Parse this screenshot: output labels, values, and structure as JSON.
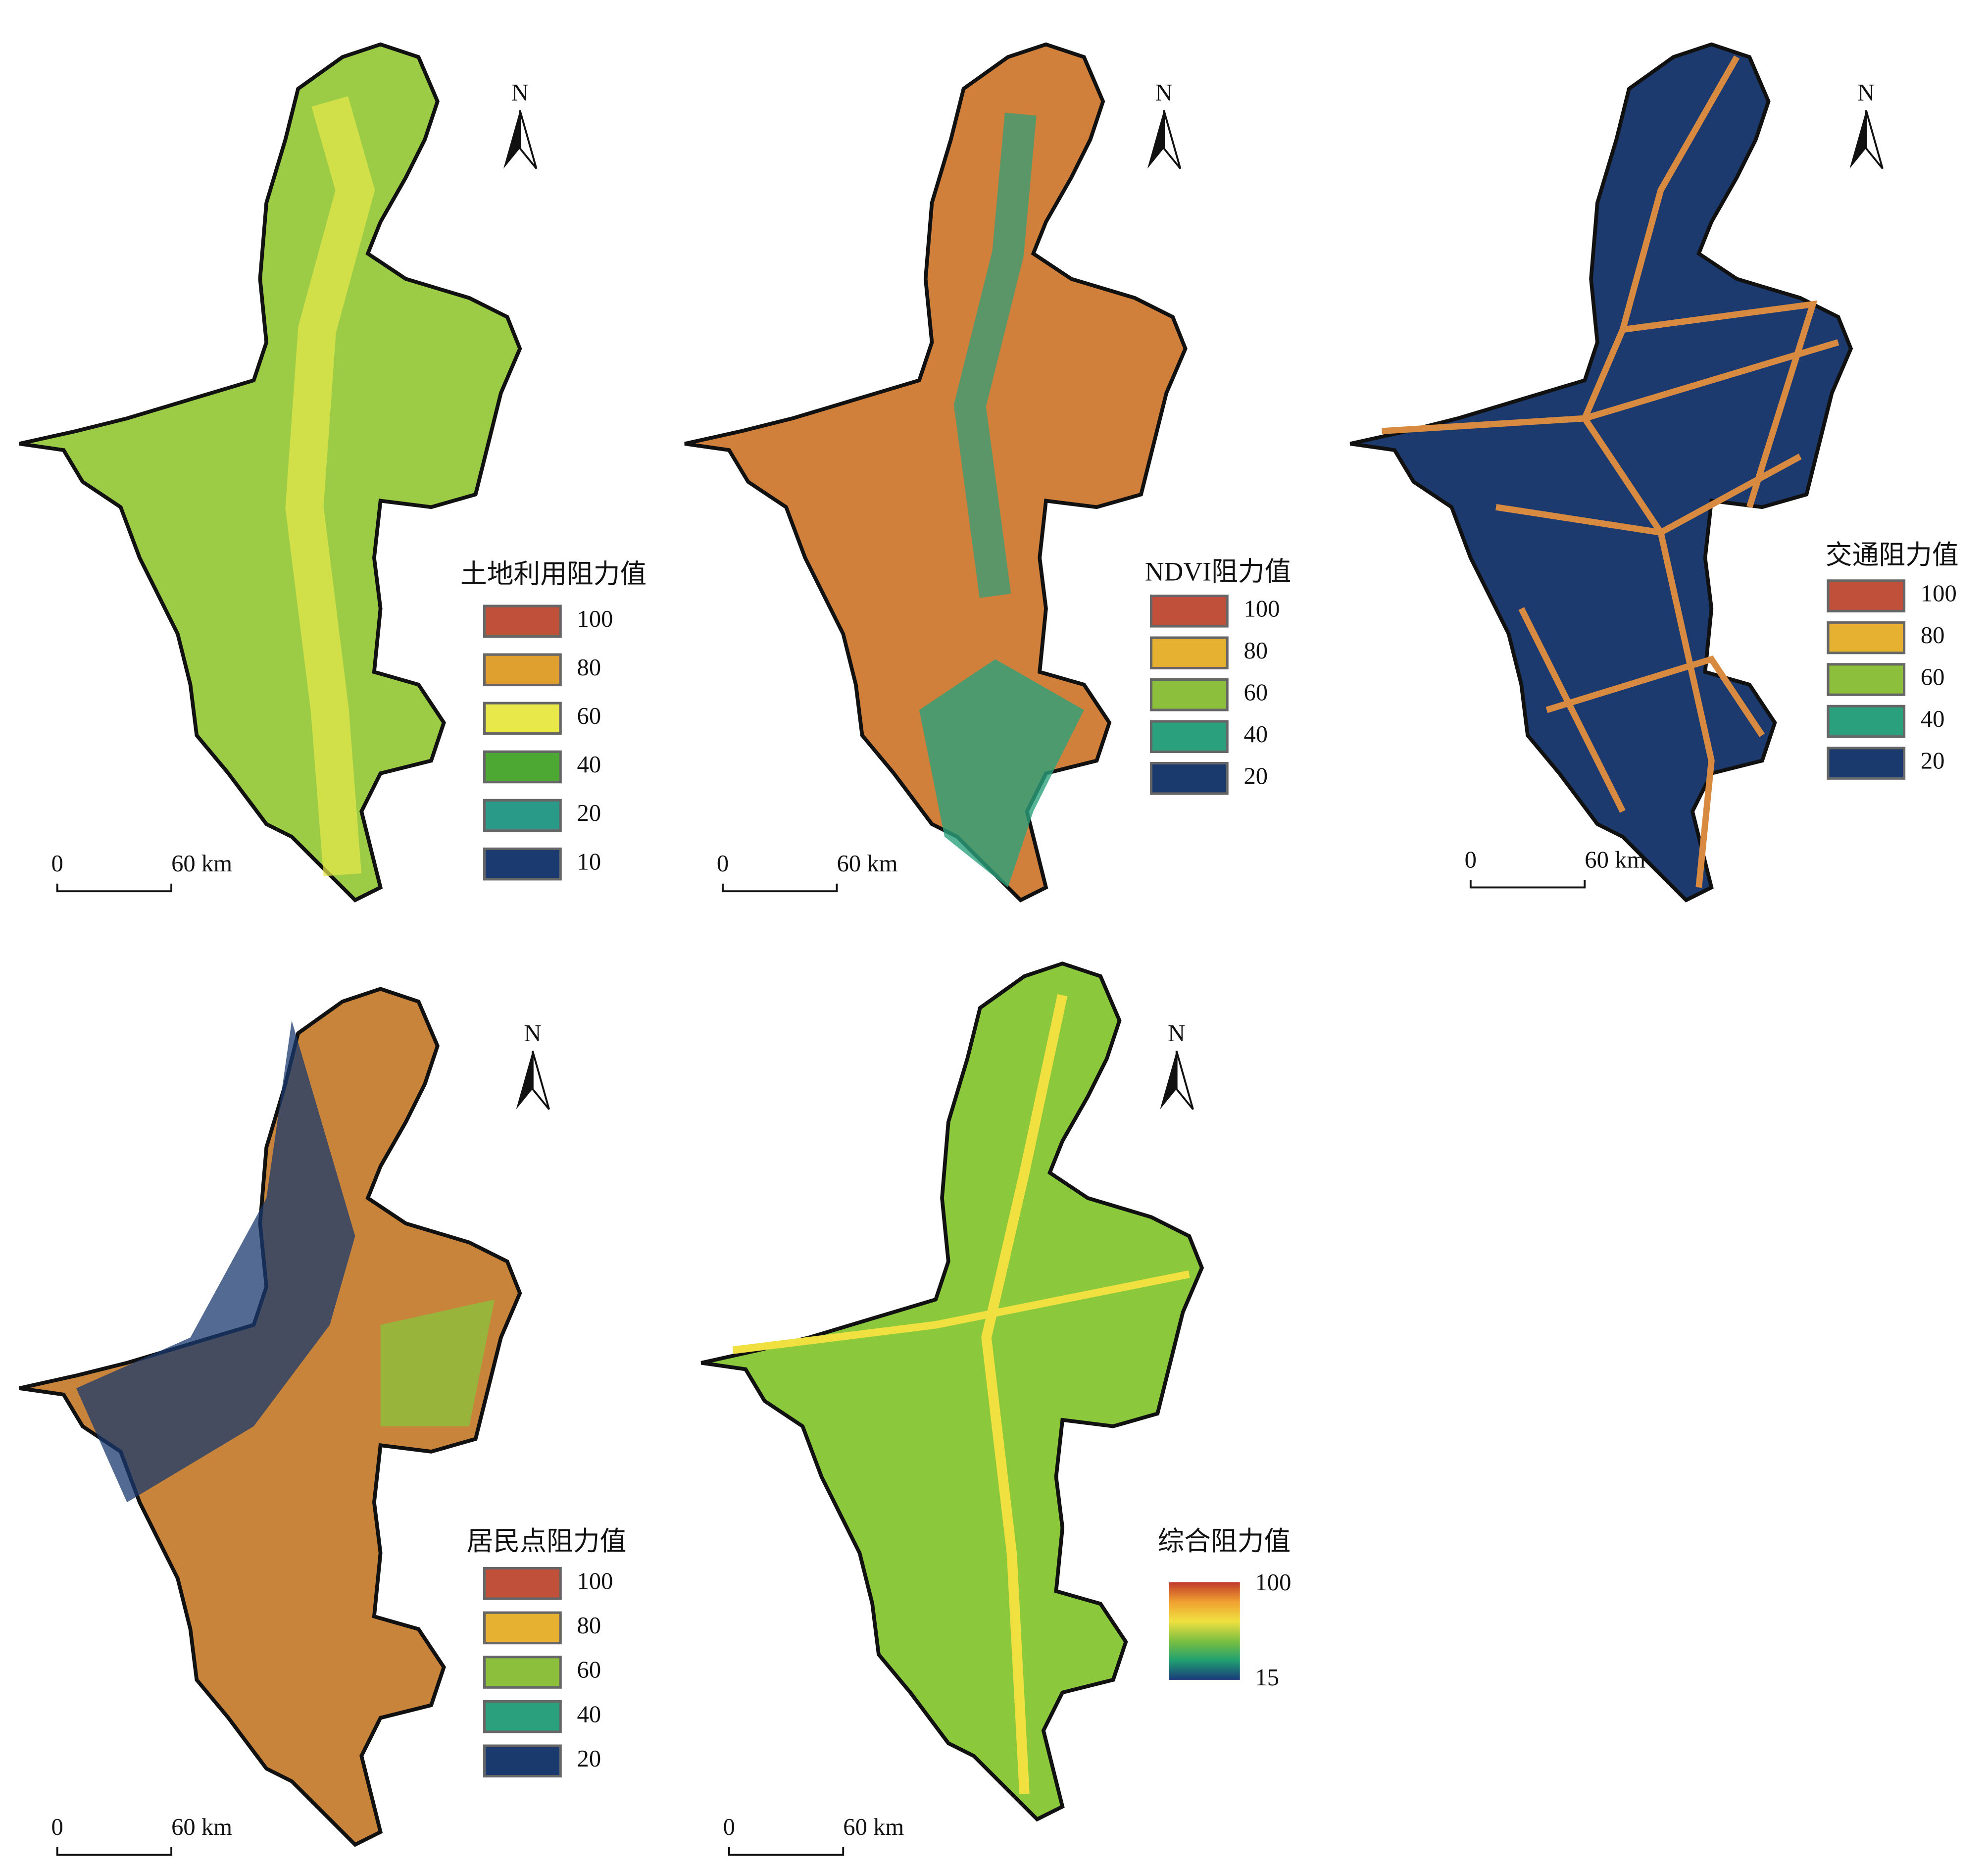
{
  "panels": [
    {
      "legend": {
        "title": "土地利用阻力值",
        "items": [
          {
            "label": 100,
            "color": "#c0503a"
          },
          {
            "label": 80,
            "color": "#e0a030"
          },
          {
            "label": 60,
            "color": "#e8e84a"
          },
          {
            "label": 40,
            "color": "#4ca832"
          },
          {
            "label": 20,
            "color": "#2a9a88"
          },
          {
            "label": 10,
            "color": "#1a3a70"
          }
        ]
      },
      "north": "N",
      "scale": {
        "start": 0,
        "end": "60 km"
      }
    },
    {
      "legend": {
        "title": "NDVI阻力值",
        "items": [
          {
            "label": 100,
            "color": "#c0503a"
          },
          {
            "label": 80,
            "color": "#e6b030"
          },
          {
            "label": 60,
            "color": "#8cc03c"
          },
          {
            "label": 40,
            "color": "#2aa07c"
          },
          {
            "label": 20,
            "color": "#1a3a6e"
          }
        ]
      },
      "north": "N",
      "scale": {
        "start": 0,
        "end": "60 km"
      }
    },
    {
      "legend": {
        "title": "交通阻力值",
        "items": [
          {
            "label": 100,
            "color": "#c0503a"
          },
          {
            "label": 80,
            "color": "#e6b030"
          },
          {
            "label": 60,
            "color": "#8cc03c"
          },
          {
            "label": 40,
            "color": "#2aa07c"
          },
          {
            "label": 20,
            "color": "#1a3a6e"
          }
        ]
      },
      "north": "N",
      "scale": {
        "start": 0,
        "end": "60 km"
      }
    },
    {
      "legend": {
        "title": "居民点阻力值",
        "items": [
          {
            "label": 100,
            "color": "#c0503a"
          },
          {
            "label": 80,
            "color": "#e6b030"
          },
          {
            "label": 60,
            "color": "#8cc03c"
          },
          {
            "label": 40,
            "color": "#2aa07c"
          },
          {
            "label": 20,
            "color": "#1a3a6e"
          }
        ]
      },
      "north": "N",
      "scale": {
        "start": 0,
        "end": "60 km"
      }
    },
    {
      "legend": {
        "title": "综合阻力值",
        "max": 100,
        "min": 15,
        "colors": [
          "#c0392b",
          "#f0a030",
          "#f0e040",
          "#7cc040",
          "#20a070",
          "#1a3a7a"
        ]
      },
      "north": "N",
      "scale": {
        "start": 0,
        "end": "60 km"
      }
    }
  ]
}
